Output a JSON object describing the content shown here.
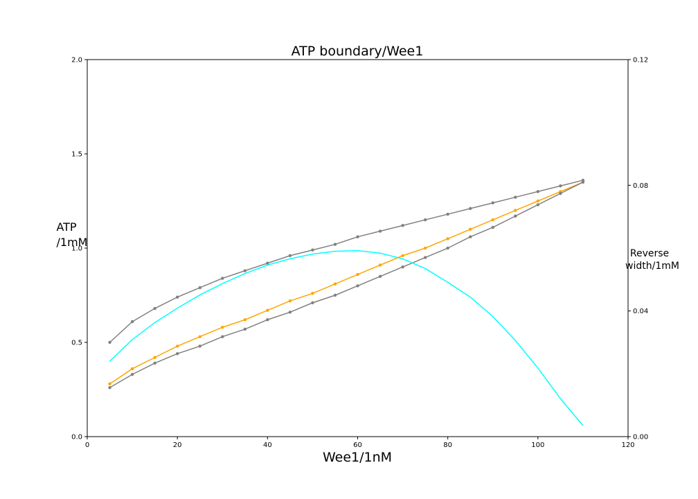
{
  "chart_data": {
    "type": "line",
    "title": "ATP boundary/Wee1",
    "xlabel": "Wee1/1nM",
    "ylabel_lines": [
      "ATP",
      "/1mM"
    ],
    "y2label_lines": [
      "Reverse",
      "width/1mM"
    ],
    "xlim": [
      0,
      120
    ],
    "ylim": [
      0,
      2.0
    ],
    "y2lim": [
      0,
      0.12
    ],
    "xticks": [
      0,
      20,
      40,
      60,
      80,
      100,
      120
    ],
    "yticks": [
      0.0,
      0.5,
      1.0,
      1.5,
      2.0
    ],
    "ytick_labels": [
      "0.0",
      "0.5",
      "1.0",
      "1.5",
      "2.0"
    ],
    "y2ticks": [
      0.0,
      0.04,
      0.08,
      0.12
    ],
    "y2tick_labels": [
      "0.00",
      "0.04",
      "0.08",
      "0.12"
    ],
    "grid": false,
    "x": [
      5,
      10,
      15,
      20,
      25,
      30,
      35,
      40,
      45,
      50,
      55,
      60,
      65,
      70,
      75,
      80,
      85,
      90,
      95,
      100,
      105,
      110
    ],
    "series": [
      {
        "axis": "left",
        "color": "#808080",
        "markers": true,
        "values": [
          0.5,
          0.61,
          0.68,
          0.74,
          0.79,
          0.84,
          0.88,
          0.92,
          0.96,
          0.99,
          1.02,
          1.06,
          1.09,
          1.12,
          1.15,
          1.18,
          1.21,
          1.24,
          1.27,
          1.3,
          1.33,
          1.36
        ]
      },
      {
        "axis": "left",
        "color": "#ffa500",
        "markers": true,
        "values": [
          0.28,
          0.36,
          0.42,
          0.48,
          0.53,
          0.58,
          0.62,
          0.67,
          0.72,
          0.76,
          0.81,
          0.86,
          0.91,
          0.96,
          1.0,
          1.05,
          1.1,
          1.15,
          1.2,
          1.25,
          1.3,
          1.35
        ]
      },
      {
        "axis": "left",
        "color": "#808080",
        "markers": true,
        "values": [
          0.26,
          0.33,
          0.39,
          0.44,
          0.48,
          0.53,
          0.57,
          0.62,
          0.66,
          0.71,
          0.75,
          0.8,
          0.85,
          0.9,
          0.95,
          1.0,
          1.06,
          1.11,
          1.17,
          1.23,
          1.29,
          1.35
        ]
      },
      {
        "axis": "right",
        "color": "#00ffff",
        "markers": false,
        "values": [
          0.024,
          0.0309,
          0.0363,
          0.0409,
          0.0451,
          0.0487,
          0.0519,
          0.0546,
          0.0566,
          0.0581,
          0.059,
          0.0592,
          0.0584,
          0.0566,
          0.0535,
          0.0491,
          0.0444,
          0.0382,
          0.0306,
          0.0218,
          0.0121,
          0.0035
        ]
      }
    ]
  }
}
